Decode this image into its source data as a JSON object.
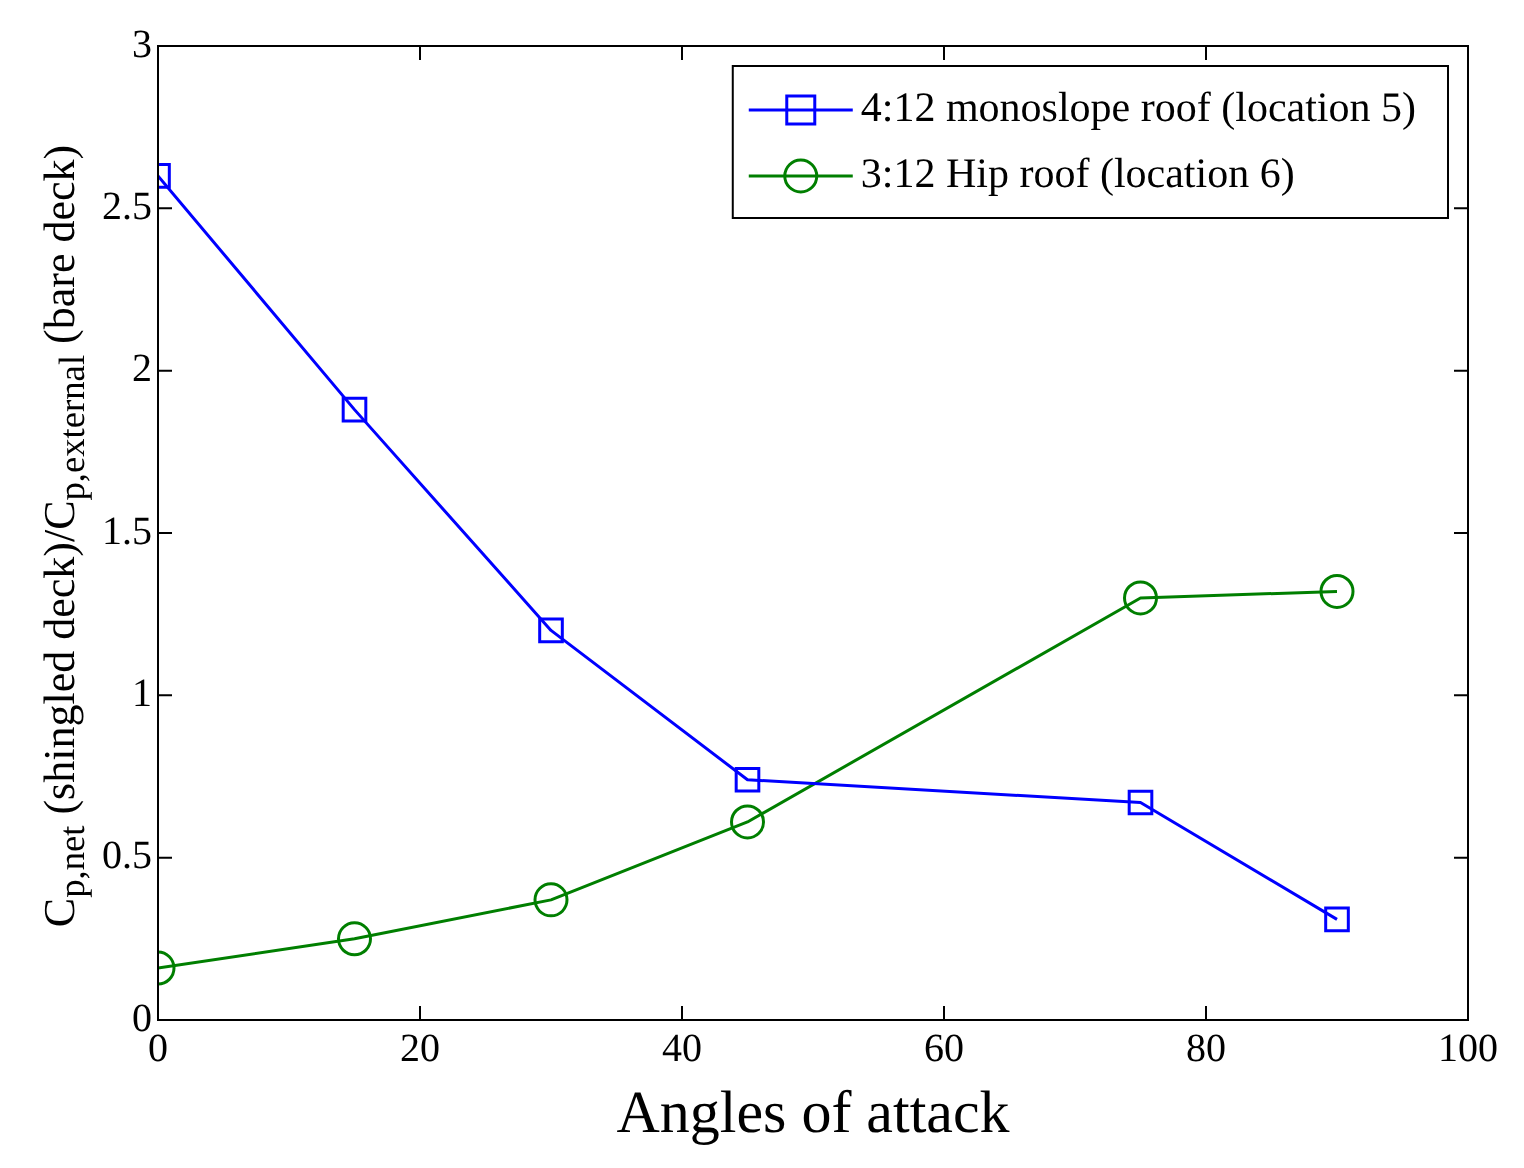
{
  "chart_data": {
    "type": "line",
    "xlabel": "Angles of attack",
    "ylabel": "C$_{p,net}$ (shingled deck)/C$_{p,external}$ (bare deck)",
    "x": [
      0,
      15,
      30,
      45,
      75,
      90
    ],
    "series": [
      {
        "name": "4:12 monoslope roof (location 5)",
        "color": "#0000ff",
        "marker": "square",
        "values": [
          2.6,
          1.88,
          1.2,
          0.74,
          0.67,
          0.31
        ]
      },
      {
        "name": "3:12 Hip roof (location 6)",
        "color": "#007f00",
        "marker": "circle",
        "values": [
          0.16,
          0.25,
          0.37,
          0.61,
          1.3,
          1.32
        ]
      }
    ],
    "xlim": [
      0,
      100
    ],
    "xticks": [
      0,
      20,
      40,
      60,
      80,
      100
    ],
    "ylim": [
      0,
      3
    ],
    "yticks": [
      0,
      0.5,
      1,
      1.5,
      2,
      2.5,
      3
    ],
    "grid": false,
    "legend": "top right",
    "line_style": "solid"
  }
}
